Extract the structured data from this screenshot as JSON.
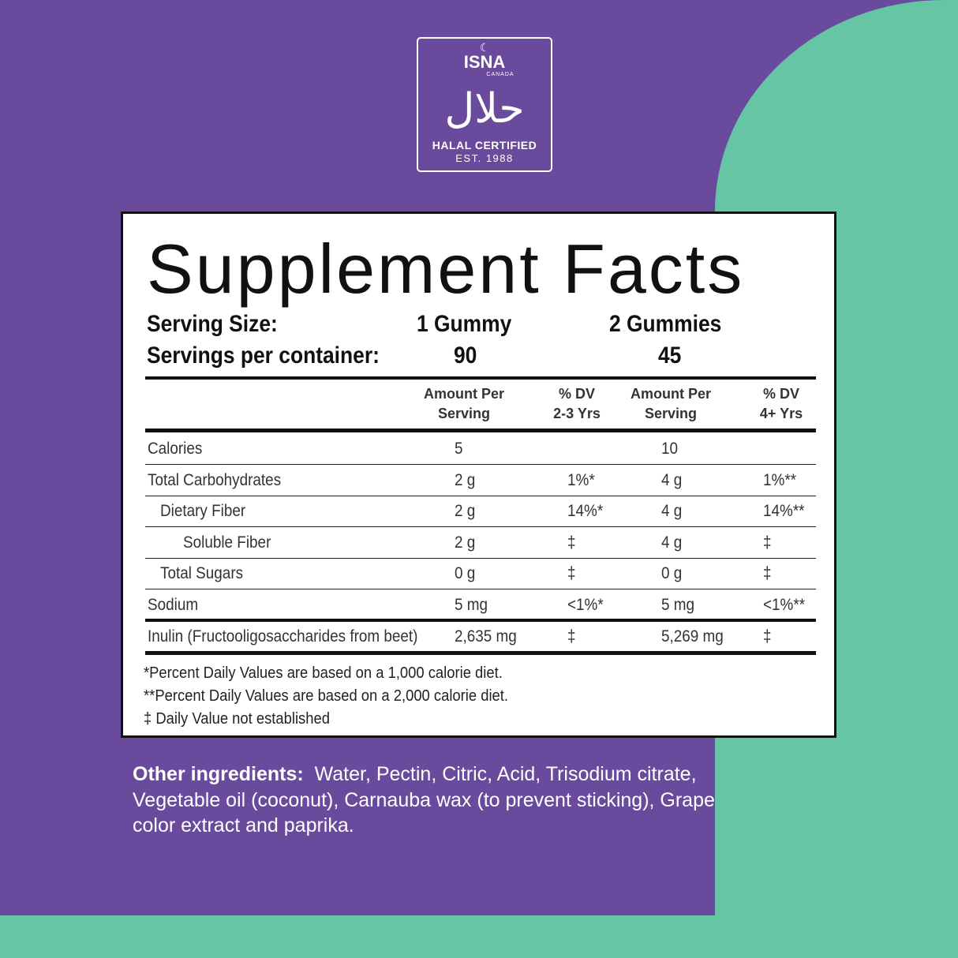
{
  "badge": {
    "moon": "☾",
    "brand": "ISNA",
    "country": "CANADA",
    "arabic": "حلال",
    "certified": "HALAL CERTIFIED",
    "established": "EST. 1988"
  },
  "facts": {
    "title": "Supplement Facts",
    "serving_size_label": "Serving Size:",
    "serving_size_1": "1 Gummy",
    "serving_size_2": "2 Gummies",
    "servings_label": "Servings per container:",
    "servings_1": "90",
    "servings_2": "45",
    "headers": {
      "amount1_line1": "Amount Per",
      "amount1_line2": "Serving",
      "dv1_line1": "% DV",
      "dv1_line2": "2-3 Yrs",
      "amount2_line1": "Amount Per",
      "amount2_line2": "Serving",
      "dv2_line1": "% DV",
      "dv2_line2": "4+ Yrs"
    },
    "rows": [
      {
        "name": "Calories",
        "amt1": "5",
        "dv1": "",
        "amt2": "10",
        "dv2": ""
      },
      {
        "name": "Total Carbohydrates",
        "amt1": "2 g",
        "dv1": "1%*",
        "amt2": "4 g",
        "dv2": "1%**"
      },
      {
        "name": "Dietary Fiber",
        "amt1": "2 g",
        "dv1": "14%*",
        "amt2": "4 g",
        "dv2": "14%**"
      },
      {
        "name": "Soluble Fiber",
        "amt1": "2 g",
        "dv1": "‡",
        "amt2": "4 g",
        "dv2": "‡"
      },
      {
        "name": "Total Sugars",
        "amt1": "0 g",
        "dv1": "‡",
        "amt2": "0 g",
        "dv2": "‡"
      },
      {
        "name": "Sodium",
        "amt1": "5 mg",
        "dv1": "<1%*",
        "amt2": "5 mg",
        "dv2": "<1%**"
      },
      {
        "name": "Inulin (Fructooligosaccharides from beet)",
        "amt1": "2,635 mg",
        "dv1": "‡",
        "amt2": "5,269 mg",
        "dv2": "‡"
      }
    ],
    "footnotes": [
      "*Percent Daily Values are based on a 1,000 calorie diet.",
      "**Percent Daily Values are based on a 2,000 calorie diet.",
      "‡ Daily Value not established"
    ]
  },
  "other_ingredients": {
    "label": "Other ingredients:",
    "text": "Water, Pectin, Citric, Acid, Trisodium citrate, Vegetable oil (coconut), Carnauba wax (to prevent sticking), Grape color extract and paprika."
  },
  "colors": {
    "purple": "#6a4a9c",
    "teal": "#65c5a5",
    "panel": "#ffffff",
    "ink": "#111111"
  }
}
